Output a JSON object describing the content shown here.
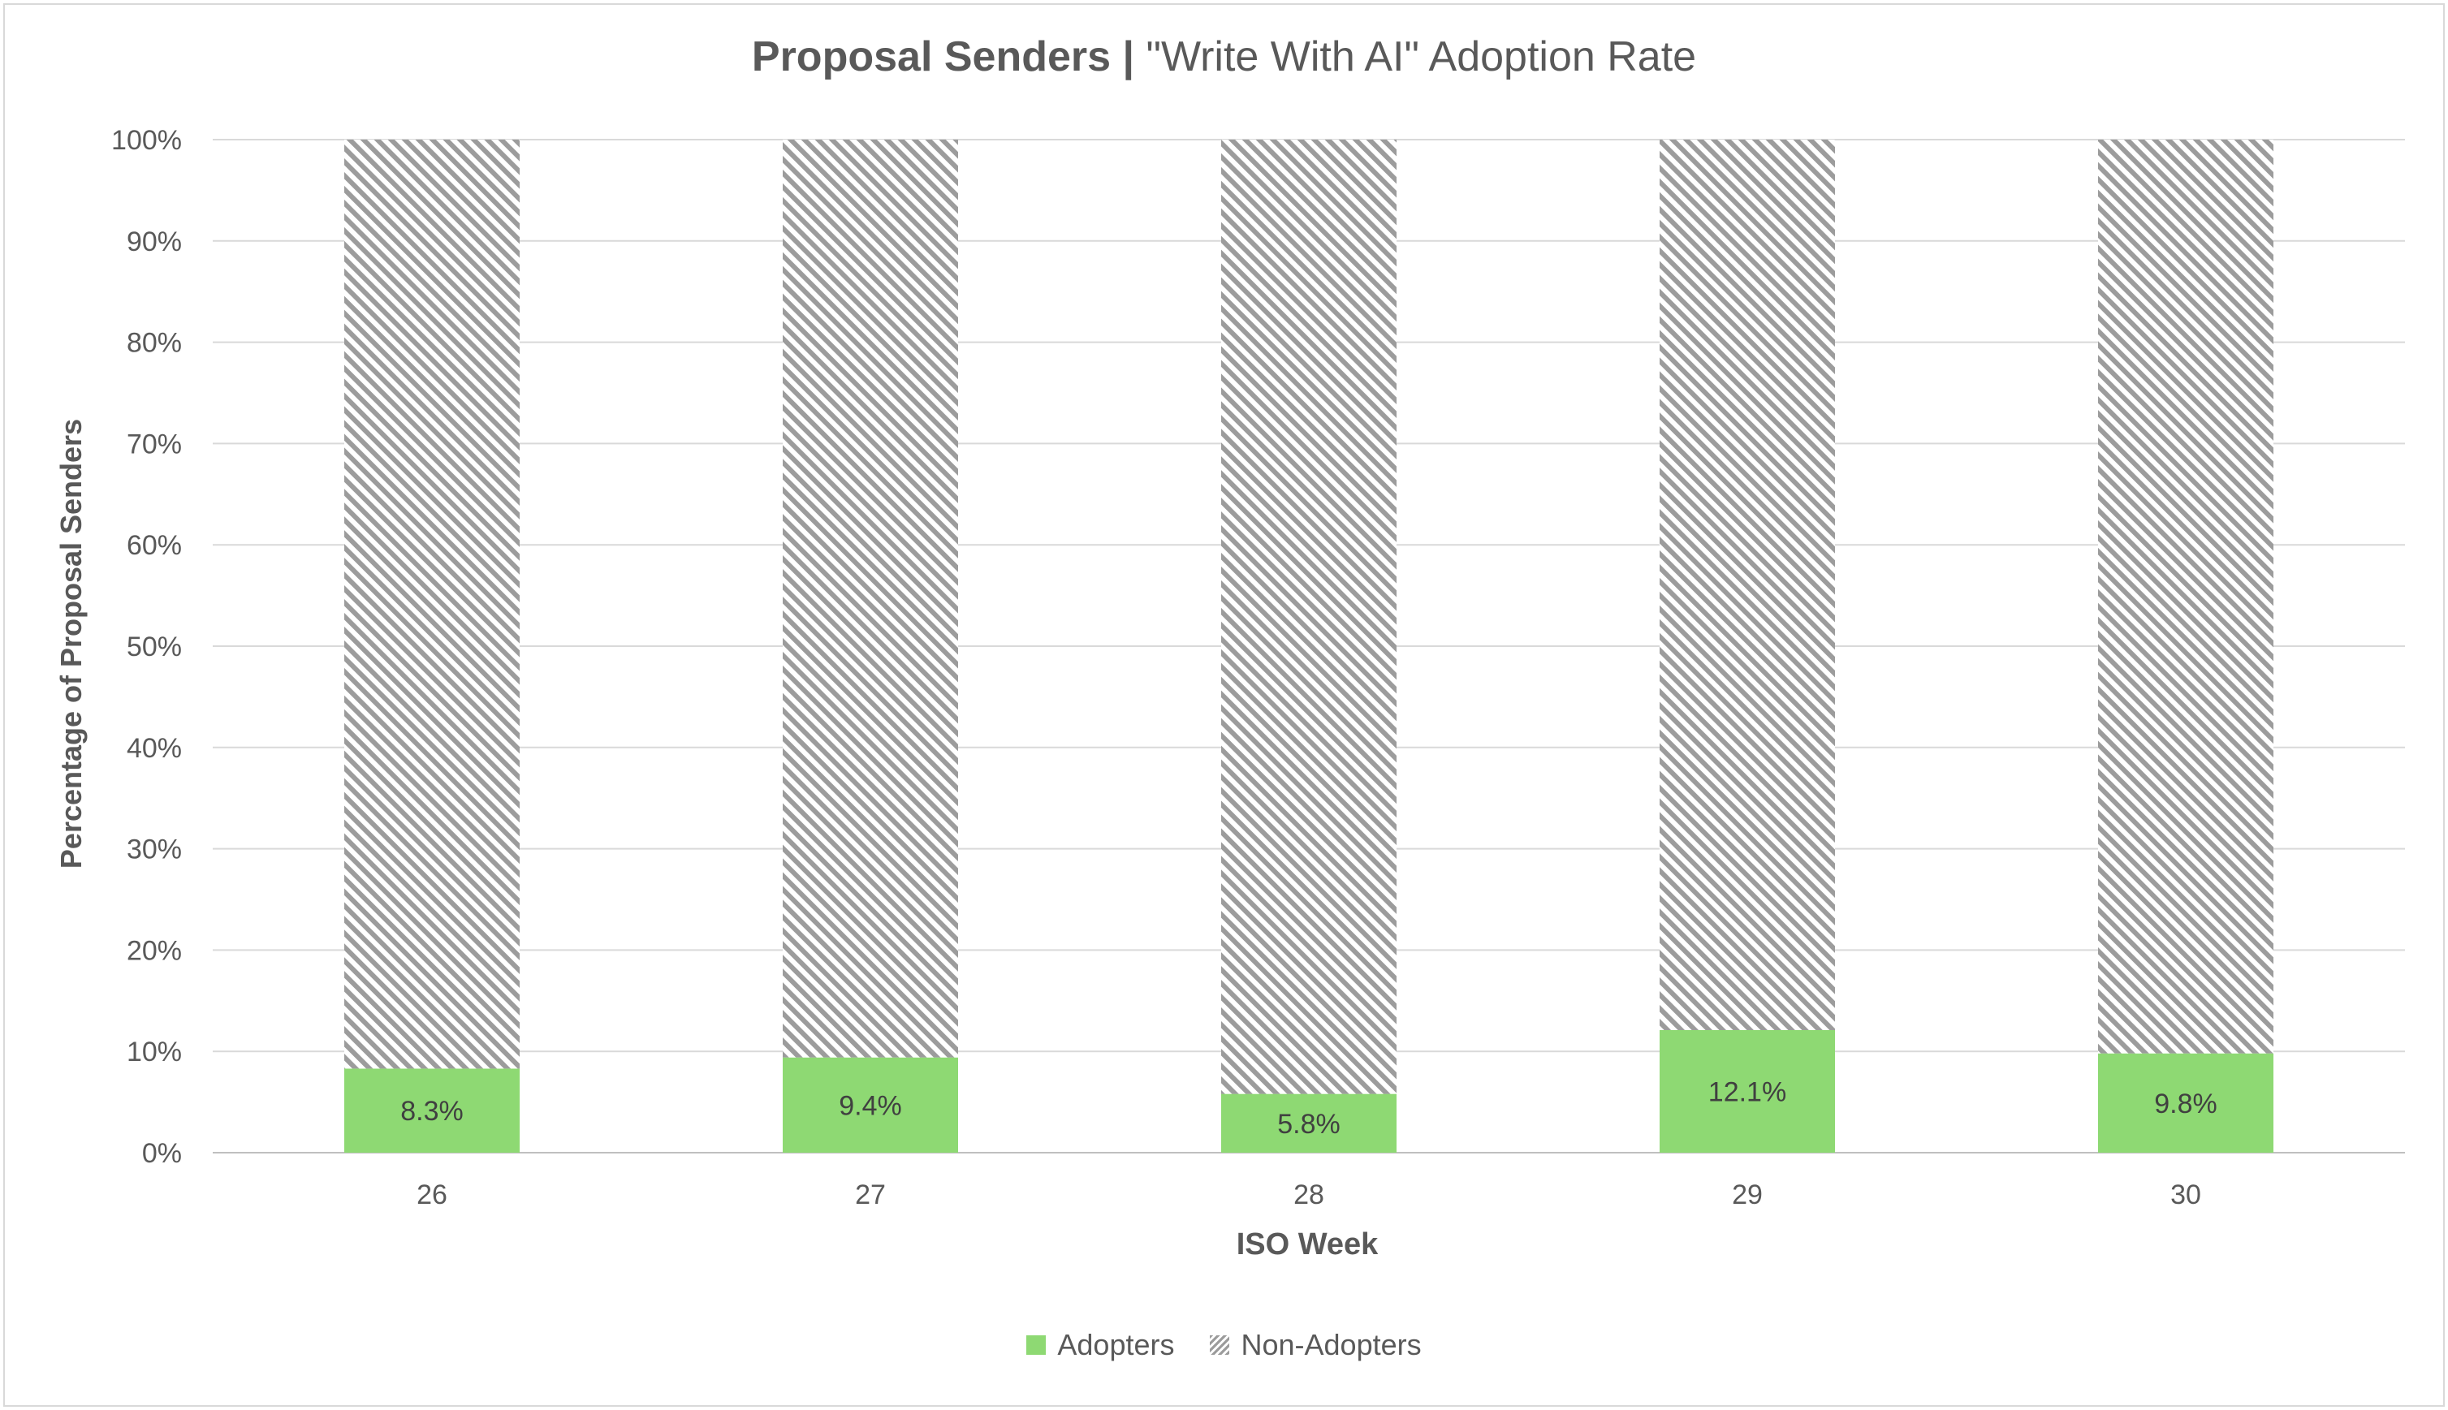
{
  "chart_data": {
    "type": "bar",
    "stacked": true,
    "title_bold": "Proposal Senders |",
    "title_rest": " \"Write With AI\" Adoption Rate",
    "xlabel": "ISO Week",
    "ylabel": "Percentage of Proposal Senders",
    "categories": [
      "26",
      "27",
      "28",
      "29",
      "30"
    ],
    "series": [
      {
        "name": "Adopters",
        "values": [
          8.3,
          9.4,
          5.8,
          12.1,
          9.8
        ],
        "color": "#8ed973"
      },
      {
        "name": "Non-Adopters",
        "values": [
          91.7,
          90.6,
          94.2,
          87.9,
          90.2
        ],
        "color": "#9c9c9c"
      }
    ],
    "data_labels": [
      "8.3%",
      "9.4%",
      "5.8%",
      "12.1%",
      "9.8%"
    ],
    "ylim": [
      0,
      100
    ],
    "yticks": [
      "0%",
      "10%",
      "20%",
      "30%",
      "40%",
      "50%",
      "60%",
      "70%",
      "80%",
      "90%",
      "100%"
    ],
    "grid": true,
    "legend_position": "bottom"
  }
}
